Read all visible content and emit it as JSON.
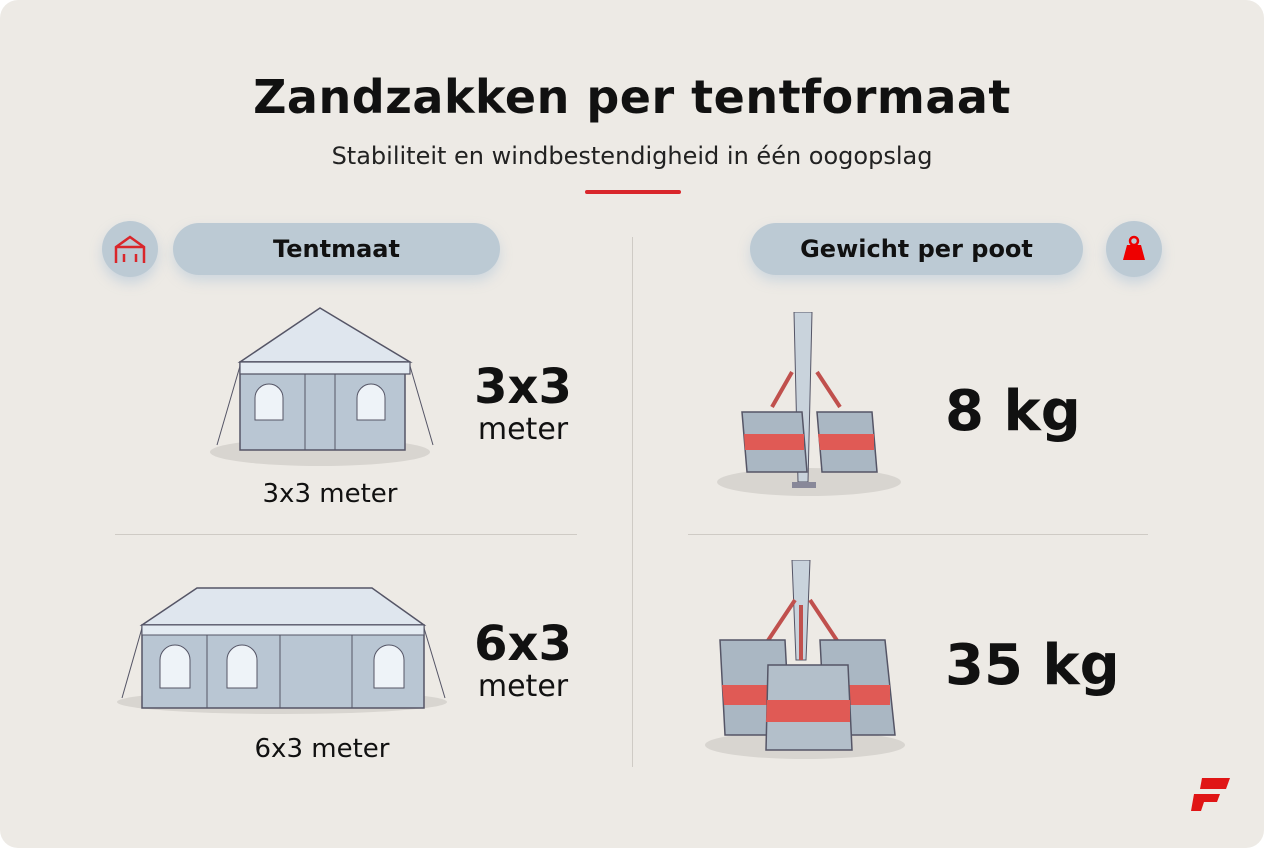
{
  "header": {
    "title": "Zandzakken per tentformaat",
    "subtitle": "Stabiliteit en windbestendigheid in één oogopslag"
  },
  "columns": {
    "left": {
      "label": "Tentmaat",
      "icon": "tent-icon"
    },
    "right": {
      "label": "Gewicht per poot",
      "icon": "weight-icon"
    }
  },
  "rows": [
    {
      "size": "3x3",
      "unit": "meter",
      "caption": "3x3 meter",
      "weight": "8 kg"
    },
    {
      "size": "6x3",
      "unit": "meter",
      "caption": "6x3 meter",
      "weight": "35 kg"
    }
  ],
  "colors": {
    "accent": "#d9262b",
    "pill": "#bccad4",
    "background": "#edeae5"
  },
  "logo": {
    "icon": "brand-f-logo"
  }
}
